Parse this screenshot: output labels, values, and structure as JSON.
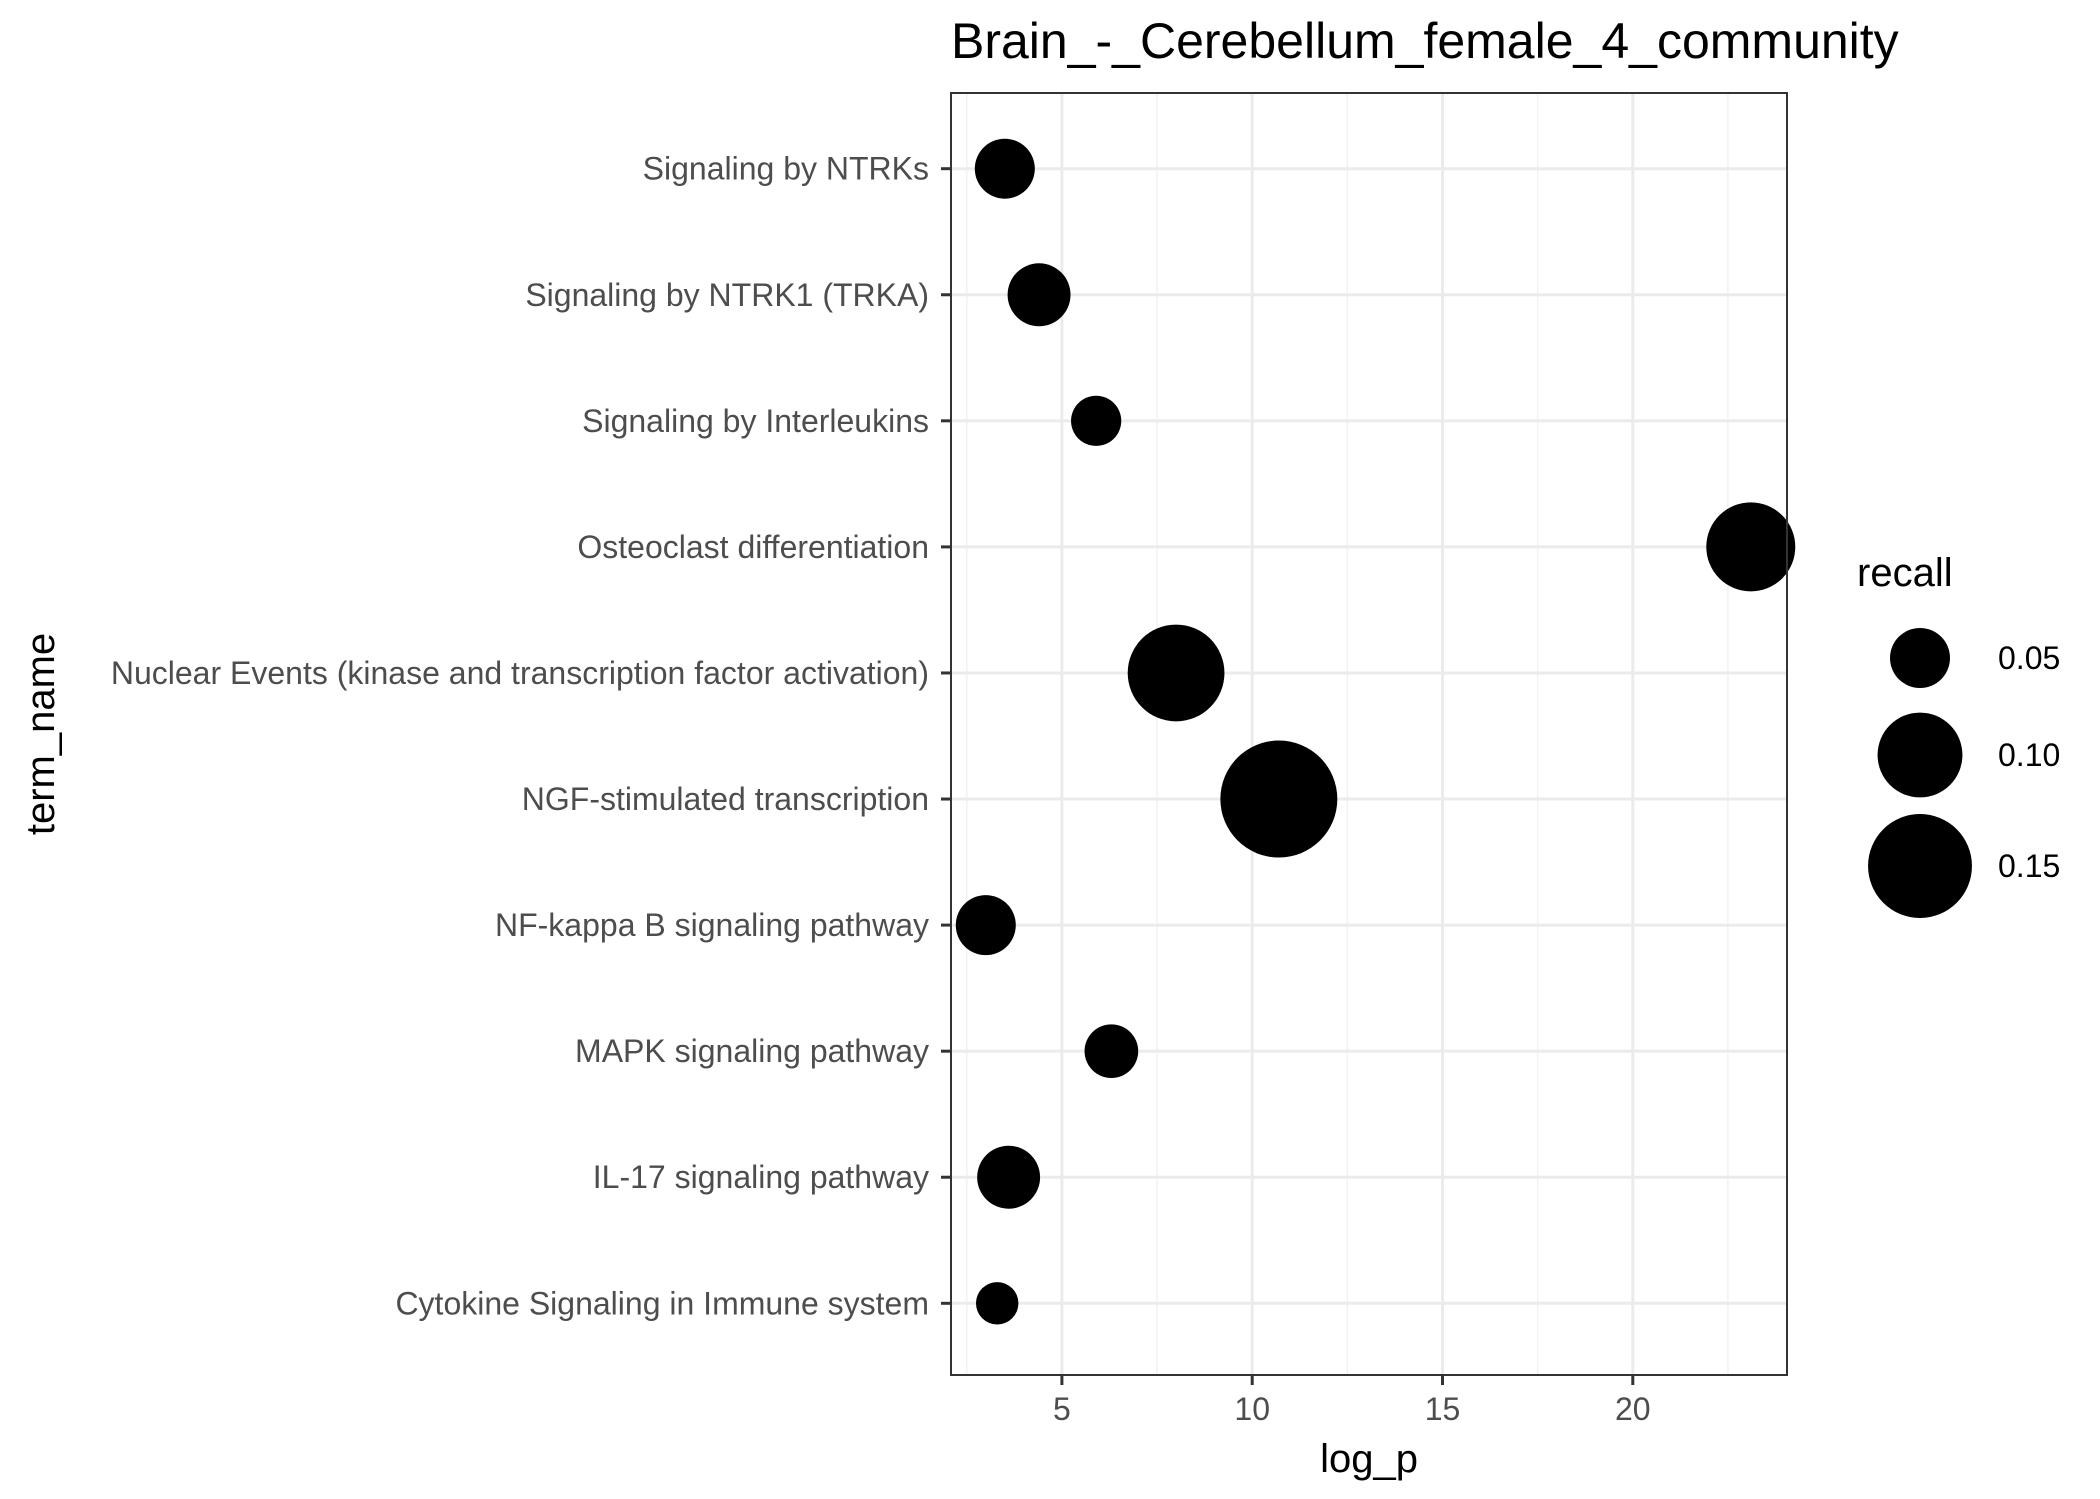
{
  "chart_data": {
    "type": "scatter",
    "title": "Brain_-_Cerebellum_female_4_community",
    "xlabel": "log_p",
    "ylabel": "term_name",
    "xlim": [
      2.0,
      24.0
    ],
    "x_ticks": [
      5,
      10,
      15,
      20
    ],
    "grid": true,
    "size_legend": {
      "title": "recall",
      "values": [
        0.05,
        0.1,
        0.15
      ],
      "labels": [
        "0.05",
        "0.10",
        "0.15"
      ],
      "placement": "right"
    },
    "categories": [
      "Cytokine Signaling in Immune system",
      "IL-17 signaling pathway",
      "MAPK signaling pathway",
      "NF-kappa B signaling pathway",
      "NGF-stimulated transcription",
      "Nuclear Events (kinase and transcription factor activation)",
      "Osteoclast differentiation",
      "Signaling by Interleukins",
      "Signaling by NTRK1 (TRKA)",
      "Signaling by NTRKs"
    ],
    "points": [
      {
        "term": "Cytokine Signaling in Immune system",
        "log_p": 3.3,
        "recall": 0.025
      },
      {
        "term": "IL-17 signaling pathway",
        "log_p": 3.6,
        "recall": 0.055
      },
      {
        "term": "MAPK signaling pathway",
        "log_p": 6.3,
        "recall": 0.04
      },
      {
        "term": "NF-kappa B signaling pathway",
        "log_p": 3.0,
        "recall": 0.05
      },
      {
        "term": "NGF-stimulated transcription",
        "log_p": 10.7,
        "recall": 0.19
      },
      {
        "term": "Nuclear Events (kinase and transcription factor activation)",
        "log_p": 8.0,
        "recall": 0.13
      },
      {
        "term": "Osteoclast differentiation",
        "log_p": 23.1,
        "recall": 0.11
      },
      {
        "term": "Signaling by Interleukins",
        "log_p": 5.9,
        "recall": 0.035
      },
      {
        "term": "Signaling by NTRK1 (TRKA)",
        "log_p": 4.4,
        "recall": 0.055
      },
      {
        "term": "Signaling by NTRKs",
        "log_p": 3.5,
        "recall": 0.05
      }
    ]
  }
}
